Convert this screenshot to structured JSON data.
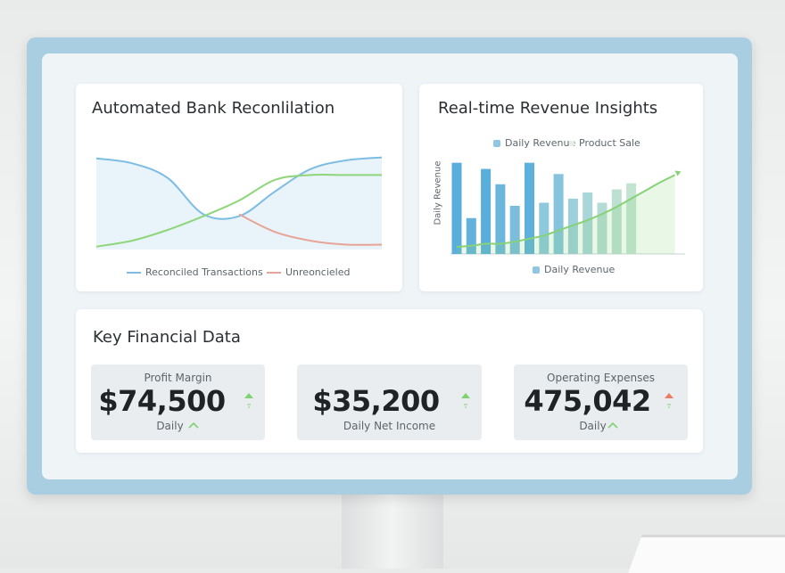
{
  "panels": {
    "reconciliation": {
      "title": "Automated Bank Reconlilation",
      "chart_data": {
        "type": "line",
        "categories": [
          null,
          null,
          null,
          null,
          null,
          null,
          null,
          null,
          null
        ],
        "ylim": [
          0,
          100
        ],
        "series": [
          {
            "name": "Reconciled Transactions",
            "color": "#7dbde3",
            "area": true,
            "values": [
              93,
              88,
              73,
              36,
              34,
              59,
              82,
              91,
              94
            ]
          },
          {
            "color": "#8fd67a",
            "values": [
              3,
              9,
              20,
              34,
              50,
              71,
              76,
              76,
              76
            ]
          },
          {
            "name": "Unreoncieled",
            "color": "#e8a496",
            "values": [
              null,
              null,
              null,
              null,
              36,
              18,
              9,
              5,
              5
            ]
          }
        ]
      }
    },
    "revenue": {
      "title": "Real-time Revenue Insights",
      "chart_data": {
        "type": "bar",
        "y_label": "Daily Revenue",
        "caption": "Daily Revenue",
        "categories": [
          null,
          null,
          null,
          null,
          null,
          null,
          null,
          null,
          null,
          null,
          null,
          null,
          null,
          null,
          null,
          null
        ],
        "ylim": [
          0,
          100
        ],
        "series": [
          {
            "name": "Daily Revenue",
            "type": "bar",
            "color": "#6cb6dd",
            "colors": [
              "#5aaedc",
              "#62b2dc",
              "#5aaedc",
              "#6cb6dd",
              "#7abddd",
              "#5fb0dc",
              "#8ec8dc",
              "#85c4dc",
              "#9dd0da",
              "#a9d6d8",
              "#b4dbd4",
              "#bde0d2",
              "#c4e4d2",
              null,
              null,
              null
            ],
            "values": [
              89,
              35,
              83,
              68,
              47,
              89,
              50,
              78,
              54,
              60,
              50,
              63,
              69,
              null,
              null,
              null
            ]
          },
          {
            "name": "Product Sale",
            "type": "line",
            "color": "#86d276",
            "area": true,
            "values": [
              7,
              8,
              10,
              10,
              12,
              15,
              18,
              23,
              28,
              33,
              39,
              46,
              54,
              62,
              70,
              77
            ]
          }
        ]
      }
    },
    "key_data": {
      "title": "Key Financial Data",
      "cards": [
        {
          "label": "Profit Margin",
          "value": "$74,500",
          "sub": "Daily"
        },
        {
          "value": "$35,200",
          "sub": "Daily Net Income"
        },
        {
          "label": "Operating Expenses",
          "value": "475,042",
          "sub": "Daily"
        }
      ]
    }
  }
}
